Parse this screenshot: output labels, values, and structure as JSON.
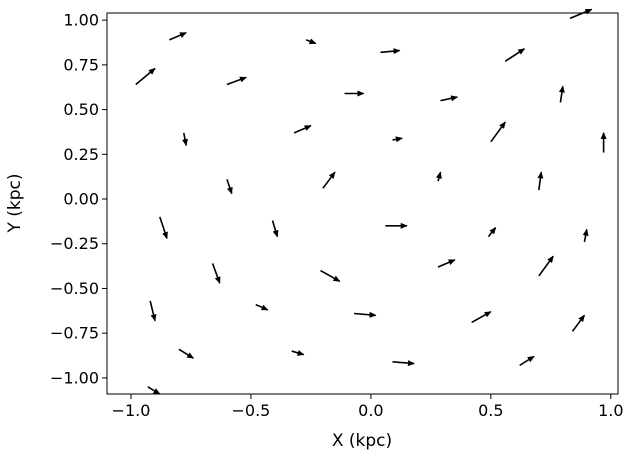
{
  "chart_data": {
    "type": "quiver",
    "title": "",
    "xlabel": "X (kpc)",
    "ylabel": "Y (kpc)",
    "xlim": [
      -1.1,
      1.03
    ],
    "ylim": [
      -1.09,
      1.04
    ],
    "grid": false,
    "legend": "none",
    "arrow_color": "#000000",
    "xticks": [
      -1.0,
      -0.5,
      0.0,
      0.5,
      1.0
    ],
    "xtick_labels": [
      "−1.0",
      "−0.5",
      "0.0",
      "0.5",
      "1.0"
    ],
    "yticks": [
      -1.0,
      -0.75,
      -0.5,
      -0.25,
      0.0,
      0.25,
      0.5,
      0.75,
      1.0
    ],
    "ytick_labels": [
      "−1.00",
      "−0.75",
      "−0.50",
      "−0.25",
      "0.00",
      "0.25",
      "0.50",
      "0.75",
      "1.00"
    ],
    "vectors": [
      {
        "x": -0.93,
        "y": -1.05,
        "u": 0.05,
        "v": -0.04
      },
      {
        "x": -0.84,
        "y": 0.89,
        "u": 0.07,
        "v": 0.04
      },
      {
        "x": -0.78,
        "y": 0.37,
        "u": 0.01,
        "v": -0.07
      },
      {
        "x": -0.8,
        "y": -0.84,
        "u": 0.06,
        "v": -0.05
      },
      {
        "x": -0.6,
        "y": 0.64,
        "u": 0.08,
        "v": 0.04
      },
      {
        "x": -0.6,
        "y": 0.11,
        "u": 0.02,
        "v": -0.08
      },
      {
        "x": -0.32,
        "y": 0.37,
        "u": 0.07,
        "v": 0.04
      },
      {
        "x": -0.41,
        "y": -0.12,
        "u": 0.02,
        "v": -0.09
      },
      {
        "x": -0.48,
        "y": -0.59,
        "u": 0.05,
        "v": -0.03
      },
      {
        "x": -0.33,
        "y": -0.85,
        "u": 0.05,
        "v": -0.02
      },
      {
        "x": -0.2,
        "y": 0.06,
        "u": 0.05,
        "v": 0.09
      },
      {
        "x": -0.21,
        "y": -0.4,
        "u": 0.08,
        "v": -0.06
      },
      {
        "x": -0.27,
        "y": 0.89,
        "u": 0.04,
        "v": -0.02
      },
      {
        "x": 0.09,
        "y": 0.33,
        "u": 0.04,
        "v": 0.01
      },
      {
        "x": 0.04,
        "y": 0.82,
        "u": 0.08,
        "v": 0.01
      },
      {
        "x": -0.11,
        "y": 0.59,
        "u": 0.08,
        "v": 0.0
      },
      {
        "x": 0.06,
        "y": -0.15,
        "u": 0.09,
        "v": 0.0
      },
      {
        "x": -0.07,
        "y": -0.64,
        "u": 0.09,
        "v": -0.01
      },
      {
        "x": 0.28,
        "y": -0.38,
        "u": 0.07,
        "v": 0.04
      },
      {
        "x": 0.28,
        "y": 0.1,
        "u": 0.01,
        "v": 0.05
      },
      {
        "x": 0.29,
        "y": 0.55,
        "u": 0.07,
        "v": 0.02
      },
      {
        "x": 0.09,
        "y": -0.91,
        "u": 0.09,
        "v": -0.01
      },
      {
        "x": 0.42,
        "y": -0.69,
        "u": 0.08,
        "v": 0.06
      },
      {
        "x": 0.49,
        "y": -0.21,
        "u": 0.03,
        "v": 0.05
      },
      {
        "x": 0.5,
        "y": 0.32,
        "u": 0.06,
        "v": 0.11
      },
      {
        "x": 0.56,
        "y": 0.77,
        "u": 0.08,
        "v": 0.07
      },
      {
        "x": 0.62,
        "y": -0.93,
        "u": 0.06,
        "v": 0.05
      },
      {
        "x": 0.7,
        "y": -0.43,
        "u": 0.06,
        "v": 0.11
      },
      {
        "x": 0.7,
        "y": 0.05,
        "u": 0.01,
        "v": 0.1
      },
      {
        "x": 0.79,
        "y": 0.54,
        "u": 0.01,
        "v": 0.09
      },
      {
        "x": 0.84,
        "y": -0.74,
        "u": 0.05,
        "v": 0.09
      },
      {
        "x": 0.89,
        "y": -0.24,
        "u": 0.01,
        "v": 0.07
      },
      {
        "x": 0.97,
        "y": 0.26,
        "u": 0.0,
        "v": 0.11
      },
      {
        "x": 0.83,
        "y": 1.01,
        "u": 0.09,
        "v": 0.05
      },
      {
        "x": -0.98,
        "y": 0.64,
        "u": 0.08,
        "v": 0.09
      },
      {
        "x": -0.92,
        "y": -0.57,
        "u": 0.02,
        "v": -0.11
      },
      {
        "x": -0.88,
        "y": -0.1,
        "u": 0.03,
        "v": -0.12
      },
      {
        "x": -0.66,
        "y": -0.36,
        "u": 0.03,
        "v": -0.11
      }
    ]
  }
}
